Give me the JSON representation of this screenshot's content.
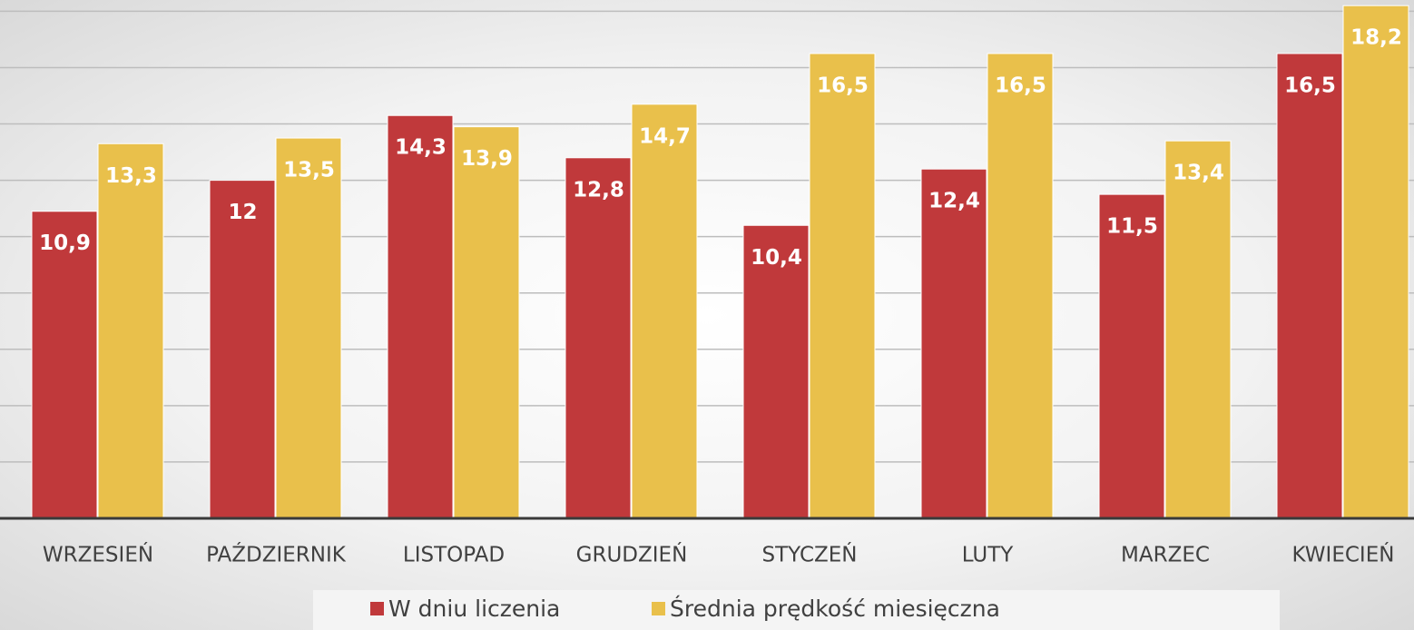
{
  "chart_data": {
    "type": "bar",
    "categories": [
      "WRZESIEŃ",
      "PAŹDZIERNIK",
      "LISTOPAD",
      "GRUDZIEŃ",
      "STYCZEŃ",
      "LUTY",
      "MARZEC",
      "KWIECIEŃ"
    ],
    "series": [
      {
        "name": "W dniu liczenia",
        "color": "#c0393b",
        "values": [
          10.9,
          12,
          14.3,
          12.8,
          10.4,
          12.4,
          11.5,
          16.5
        ],
        "value_labels": [
          "10,9",
          "12",
          "14,3",
          "12,8",
          "10,4",
          "12,4",
          "11,5",
          "16,5"
        ]
      },
      {
        "name": "Średnia prędkość miesięczna",
        "color": "#e9c04b",
        "values": [
          13.3,
          13.5,
          13.9,
          14.7,
          16.5,
          16.5,
          13.4,
          18.2
        ],
        "value_labels": [
          "13,3",
          "13,5",
          "13,9",
          "14,7",
          "16,5",
          "16,5",
          "13,4",
          "18,2"
        ]
      }
    ],
    "ylim": [
      0,
      18.4
    ],
    "yticks": [
      0,
      2,
      4,
      6,
      8,
      10,
      12,
      14,
      16,
      18
    ],
    "grid": true,
    "legend": "bottom"
  }
}
